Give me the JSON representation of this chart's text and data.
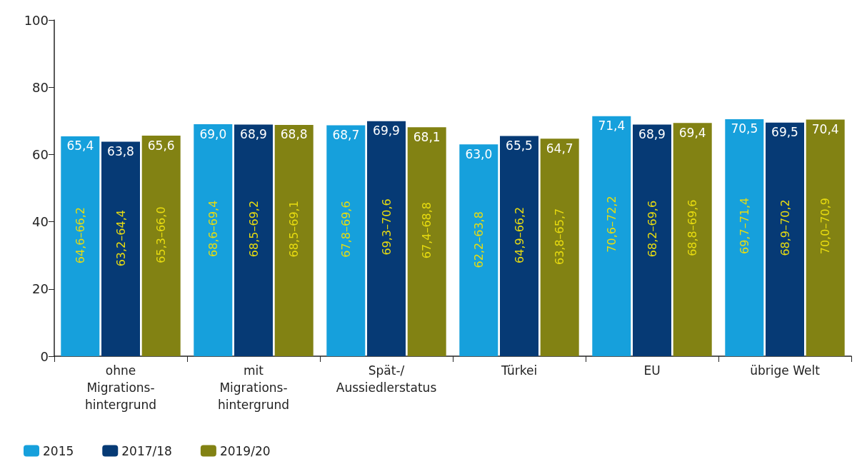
{
  "chart_data": {
    "type": "bar",
    "categories": [
      "ohne\nMigrations-\nhintergrund",
      "mit\nMigrations-\nhintergrund",
      "Spät-/\nAussiedlerstatus",
      "Türkei",
      "EU",
      "übrige Welt"
    ],
    "series": [
      {
        "name": "2015",
        "color": "#16a0dc",
        "values": [
          65.4,
          69.0,
          68.7,
          63.0,
          71.4,
          70.5
        ],
        "value_labels": [
          "65,4",
          "69,0",
          "68,7",
          "63,0",
          "71,4",
          "70,5"
        ]
      },
      {
        "name": "2017/18",
        "color": "#063a75",
        "values": [
          63.8,
          68.9,
          69.9,
          65.5,
          68.9,
          69.5
        ],
        "value_labels": [
          "63,8",
          "68,9",
          "69,9",
          "65,5",
          "68,9",
          "69,5"
        ]
      },
      {
        "name": "2019/20",
        "color": "#828213",
        "values": [
          65.6,
          68.8,
          68.1,
          64.7,
          69.4,
          70.4
        ],
        "value_labels": [
          "65,6",
          "68,8",
          "68,1",
          "64,7",
          "69,4",
          "70,4"
        ]
      }
    ],
    "annotations": [
      "64,6–66,2",
      "68,6–69,4",
      "67,8–69,6",
      "62,2–63,8",
      "70,6–72,2",
      "69,7–71,4",
      "63,2–64,4",
      "68,5–69,2",
      "69,3–70,6",
      "64,9–66,2",
      "68,2–69,6",
      "68,9–70,2",
      "65,3–66,0",
      "68,5–69,1",
      "67,4–68,8",
      "63,8–65,7",
      "68,8–69,6",
      "70,0–70,9"
    ],
    "ylim": [
      0,
      100
    ],
    "yticks": [
      0,
      20,
      40,
      60,
      80,
      100
    ],
    "grid": false,
    "legend": "bottom left"
  }
}
